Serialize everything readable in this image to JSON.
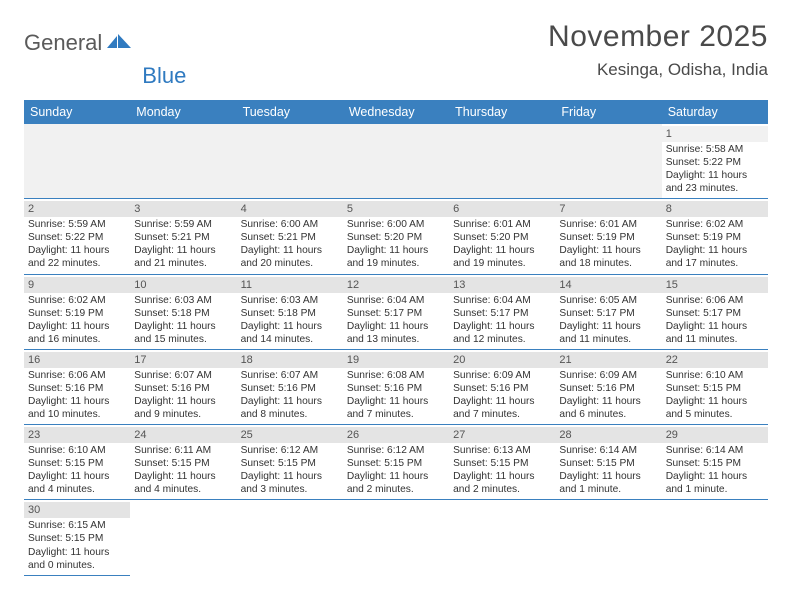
{
  "logo": {
    "general": "General",
    "blue": "Blue"
  },
  "header": {
    "month_title": "November 2025",
    "location": "Kesinga, Odisha, India"
  },
  "colors": {
    "header_bar": "#3a80bf",
    "weekday_text": "#ffffff",
    "daynum_bg": "#e4e4e4",
    "empty_bg": "#f1f1f1",
    "border": "#3a80bf",
    "body_text": "#333333",
    "title_text": "#4a4a4a",
    "logo_gray": "#5a5a5a",
    "logo_blue": "#2f7ac0",
    "page_bg": "#ffffff"
  },
  "typography": {
    "month_title_pt": 30,
    "location_pt": 17,
    "weekday_pt": 12.5,
    "cell_pt": 10.2,
    "daynum_pt": 11,
    "logo_pt": 22,
    "font_family": "Arial"
  },
  "weekdays": [
    "Sunday",
    "Monday",
    "Tuesday",
    "Wednesday",
    "Thursday",
    "Friday",
    "Saturday"
  ],
  "weeks": [
    [
      null,
      null,
      null,
      null,
      null,
      null,
      {
        "n": "1",
        "sunrise": "Sunrise: 5:58 AM",
        "sunset": "Sunset: 5:22 PM",
        "daylight": "Daylight: 11 hours and 23 minutes."
      }
    ],
    [
      {
        "n": "2",
        "sunrise": "Sunrise: 5:59 AM",
        "sunset": "Sunset: 5:22 PM",
        "daylight": "Daylight: 11 hours and 22 minutes."
      },
      {
        "n": "3",
        "sunrise": "Sunrise: 5:59 AM",
        "sunset": "Sunset: 5:21 PM",
        "daylight": "Daylight: 11 hours and 21 minutes."
      },
      {
        "n": "4",
        "sunrise": "Sunrise: 6:00 AM",
        "sunset": "Sunset: 5:21 PM",
        "daylight": "Daylight: 11 hours and 20 minutes."
      },
      {
        "n": "5",
        "sunrise": "Sunrise: 6:00 AM",
        "sunset": "Sunset: 5:20 PM",
        "daylight": "Daylight: 11 hours and 19 minutes."
      },
      {
        "n": "6",
        "sunrise": "Sunrise: 6:01 AM",
        "sunset": "Sunset: 5:20 PM",
        "daylight": "Daylight: 11 hours and 19 minutes."
      },
      {
        "n": "7",
        "sunrise": "Sunrise: 6:01 AM",
        "sunset": "Sunset: 5:19 PM",
        "daylight": "Daylight: 11 hours and 18 minutes."
      },
      {
        "n": "8",
        "sunrise": "Sunrise: 6:02 AM",
        "sunset": "Sunset: 5:19 PM",
        "daylight": "Daylight: 11 hours and 17 minutes."
      }
    ],
    [
      {
        "n": "9",
        "sunrise": "Sunrise: 6:02 AM",
        "sunset": "Sunset: 5:19 PM",
        "daylight": "Daylight: 11 hours and 16 minutes."
      },
      {
        "n": "10",
        "sunrise": "Sunrise: 6:03 AM",
        "sunset": "Sunset: 5:18 PM",
        "daylight": "Daylight: 11 hours and 15 minutes."
      },
      {
        "n": "11",
        "sunrise": "Sunrise: 6:03 AM",
        "sunset": "Sunset: 5:18 PM",
        "daylight": "Daylight: 11 hours and 14 minutes."
      },
      {
        "n": "12",
        "sunrise": "Sunrise: 6:04 AM",
        "sunset": "Sunset: 5:17 PM",
        "daylight": "Daylight: 11 hours and 13 minutes."
      },
      {
        "n": "13",
        "sunrise": "Sunrise: 6:04 AM",
        "sunset": "Sunset: 5:17 PM",
        "daylight": "Daylight: 11 hours and 12 minutes."
      },
      {
        "n": "14",
        "sunrise": "Sunrise: 6:05 AM",
        "sunset": "Sunset: 5:17 PM",
        "daylight": "Daylight: 11 hours and 11 minutes."
      },
      {
        "n": "15",
        "sunrise": "Sunrise: 6:06 AM",
        "sunset": "Sunset: 5:17 PM",
        "daylight": "Daylight: 11 hours and 11 minutes."
      }
    ],
    [
      {
        "n": "16",
        "sunrise": "Sunrise: 6:06 AM",
        "sunset": "Sunset: 5:16 PM",
        "daylight": "Daylight: 11 hours and 10 minutes."
      },
      {
        "n": "17",
        "sunrise": "Sunrise: 6:07 AM",
        "sunset": "Sunset: 5:16 PM",
        "daylight": "Daylight: 11 hours and 9 minutes."
      },
      {
        "n": "18",
        "sunrise": "Sunrise: 6:07 AM",
        "sunset": "Sunset: 5:16 PM",
        "daylight": "Daylight: 11 hours and 8 minutes."
      },
      {
        "n": "19",
        "sunrise": "Sunrise: 6:08 AM",
        "sunset": "Sunset: 5:16 PM",
        "daylight": "Daylight: 11 hours and 7 minutes."
      },
      {
        "n": "20",
        "sunrise": "Sunrise: 6:09 AM",
        "sunset": "Sunset: 5:16 PM",
        "daylight": "Daylight: 11 hours and 7 minutes."
      },
      {
        "n": "21",
        "sunrise": "Sunrise: 6:09 AM",
        "sunset": "Sunset: 5:16 PM",
        "daylight": "Daylight: 11 hours and 6 minutes."
      },
      {
        "n": "22",
        "sunrise": "Sunrise: 6:10 AM",
        "sunset": "Sunset: 5:15 PM",
        "daylight": "Daylight: 11 hours and 5 minutes."
      }
    ],
    [
      {
        "n": "23",
        "sunrise": "Sunrise: 6:10 AM",
        "sunset": "Sunset: 5:15 PM",
        "daylight": "Daylight: 11 hours and 4 minutes."
      },
      {
        "n": "24",
        "sunrise": "Sunrise: 6:11 AM",
        "sunset": "Sunset: 5:15 PM",
        "daylight": "Daylight: 11 hours and 4 minutes."
      },
      {
        "n": "25",
        "sunrise": "Sunrise: 6:12 AM",
        "sunset": "Sunset: 5:15 PM",
        "daylight": "Daylight: 11 hours and 3 minutes."
      },
      {
        "n": "26",
        "sunrise": "Sunrise: 6:12 AM",
        "sunset": "Sunset: 5:15 PM",
        "daylight": "Daylight: 11 hours and 2 minutes."
      },
      {
        "n": "27",
        "sunrise": "Sunrise: 6:13 AM",
        "sunset": "Sunset: 5:15 PM",
        "daylight": "Daylight: 11 hours and 2 minutes."
      },
      {
        "n": "28",
        "sunrise": "Sunrise: 6:14 AM",
        "sunset": "Sunset: 5:15 PM",
        "daylight": "Daylight: 11 hours and 1 minute."
      },
      {
        "n": "29",
        "sunrise": "Sunrise: 6:14 AM",
        "sunset": "Sunset: 5:15 PM",
        "daylight": "Daylight: 11 hours and 1 minute."
      }
    ],
    [
      {
        "n": "30",
        "sunrise": "Sunrise: 6:15 AM",
        "sunset": "Sunset: 5:15 PM",
        "daylight": "Daylight: 11 hours and 0 minutes."
      },
      null,
      null,
      null,
      null,
      null,
      null
    ]
  ]
}
